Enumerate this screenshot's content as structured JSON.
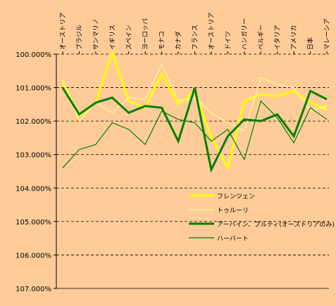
{
  "chart_data": {
    "type": "line",
    "title": "",
    "xlabel": "",
    "ylabel": "",
    "categories": [
      "オーストリア",
      "ブラジル",
      "サンマリノ",
      "イギリス",
      "スペイン",
      "ヨーロッパ",
      "モナコ",
      "カナダ",
      "フランス",
      "オーストリア",
      "ドイツ",
      "ハンガリー",
      "ベルギー",
      "イタリア",
      "アメリカ",
      "日本",
      "マレーシア"
    ],
    "y_axis": {
      "min": 100,
      "max": 107,
      "inverted": true,
      "ticks": [
        "100.000%",
        "101.000%",
        "102.000%",
        "103.000%",
        "104.000%",
        "105.000%",
        "106.000%",
        "107.000%"
      ]
    },
    "grid": "horizontal dashed",
    "legend_position": "bottom-right inside plot",
    "series": [
      {
        "name": "フレンツェン",
        "color": "#ffff00",
        "style": "thick",
        "values": [
          100.85,
          101.85,
          101.45,
          99.95,
          101.4,
          101.6,
          100.6,
          101.5,
          101.1,
          102.5,
          103.4,
          101.4,
          101.2,
          101.25,
          101.1,
          101.45,
          101.65
        ]
      },
      {
        "name": "トゥルーリ",
        "color": "#ffff99",
        "style": "thin",
        "values": [
          100.75,
          102.0,
          101.45,
          101.75,
          101.3,
          101.35,
          100.3,
          101.4,
          101.3,
          101.75,
          102.05,
          102.3,
          100.7,
          100.9,
          101.0,
          101.7,
          101.55
        ]
      },
      {
        "name": "アーバイン、ブルティ(オーストリアのみ)",
        "color": "#008000",
        "style": "thick",
        "values": [
          101.0,
          101.8,
          101.45,
          101.3,
          101.75,
          101.55,
          101.6,
          102.6,
          101.0,
          103.45,
          102.45,
          101.95,
          102.0,
          101.8,
          102.45,
          101.1,
          101.35
        ]
      },
      {
        "name": "ハーバート",
        "color": "#008000",
        "style": "thin",
        "values": [
          103.4,
          102.85,
          102.7,
          102.05,
          102.25,
          102.7,
          101.7,
          101.95,
          102.05,
          102.6,
          102.25,
          103.15,
          101.4,
          101.9,
          102.65,
          101.6,
          101.95
        ]
      }
    ]
  }
}
